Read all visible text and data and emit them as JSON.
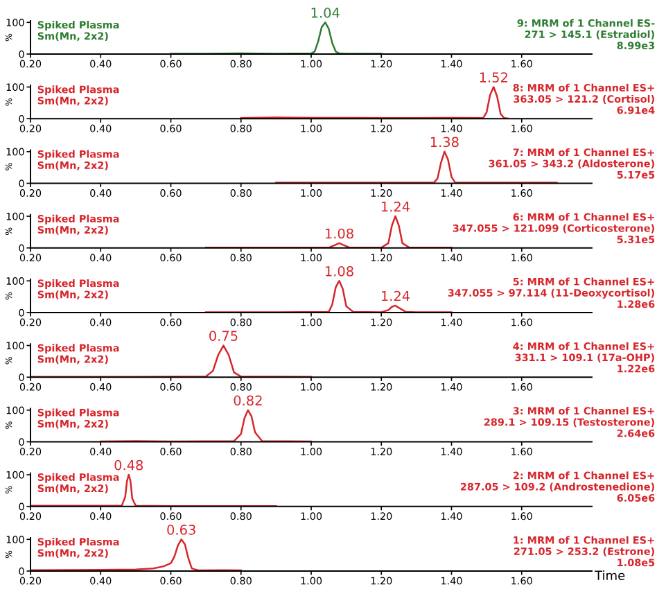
{
  "chart_data": [
    {
      "type": "line",
      "x": [
        0.6,
        0.7,
        0.8,
        0.9,
        1.0,
        1.01,
        1.02,
        1.03,
        1.04,
        1.05,
        1.06,
        1.07,
        1.08,
        1.1,
        1.2
      ],
      "series": [
        {
          "color": "#2e7d32",
          "values": [
            1,
            1,
            2,
            1,
            2,
            8,
            40,
            85,
            100,
            80,
            35,
            8,
            2,
            1,
            1
          ]
        }
      ],
      "xlim": [
        0.2,
        1.8
      ],
      "ylim": [
        0,
        105
      ],
      "xticks": [
        {
          "value": 0.2,
          "label": "0.20"
        },
        {
          "value": 0.4,
          "label": "0.40"
        },
        {
          "value": 0.6,
          "label": "0.60"
        },
        {
          "value": 0.8,
          "label": "0.80"
        },
        {
          "value": 1.0,
          "label": "1.00"
        },
        {
          "value": 1.2,
          "label": "1.20"
        },
        {
          "value": 1.4,
          "label": "1.40"
        },
        {
          "value": 1.6,
          "label": "1.60"
        }
      ],
      "yticks": [
        0,
        100
      ],
      "ylabel": "%",
      "annotations": [
        "Spiked Plasma\nSm(Mn, 2x2)",
        "9: MRM of 1 Channel ES-\n271 > 145.1 (Estradiol)\n8.99e3",
        {
          "text": "1.04",
          "x": 1.04,
          "y": 100
        }
      ]
    },
    {
      "type": "line",
      "x": [
        0.8,
        0.9,
        1.0,
        1.1,
        1.2,
        1.3,
        1.4,
        1.49,
        1.5,
        1.51,
        1.52,
        1.53,
        1.54,
        1.55,
        1.56
      ],
      "series": [
        {
          "color": "#d7262b",
          "values": [
            2,
            4,
            3,
            3,
            2,
            2,
            3,
            2,
            20,
            75,
            100,
            70,
            15,
            2,
            1
          ]
        }
      ],
      "xlim": [
        0.2,
        1.8
      ],
      "ylim": [
        0,
        105
      ],
      "xticks": [
        {
          "value": 0.2,
          "label": "0.20"
        },
        {
          "value": 0.4,
          "label": "0.40"
        },
        {
          "value": 0.6,
          "label": "0.60"
        },
        {
          "value": 0.8,
          "label": "0.80"
        },
        {
          "value": 1.0,
          "label": "1.00"
        },
        {
          "value": 1.2,
          "label": "1.20"
        },
        {
          "value": 1.4,
          "label": "1.40"
        },
        {
          "value": 1.6,
          "label": "1.60"
        }
      ],
      "yticks": [
        0,
        100
      ],
      "ylabel": "%",
      "annotations": [
        "Spiked Plasma\nSm(Mn, 2x2)",
        "8: MRM of 1 Channel ES+\n363.05 > 121.2 (Cortisol)\n6.91e4",
        {
          "text": "1.52",
          "x": 1.52,
          "y": 100
        }
      ]
    },
    {
      "type": "line",
      "x": [
        0.9,
        1.0,
        1.1,
        1.2,
        1.3,
        1.35,
        1.36,
        1.37,
        1.38,
        1.39,
        1.4,
        1.41,
        1.5,
        1.6,
        1.7
      ],
      "series": [
        {
          "color": "#d7262b",
          "values": [
            2,
            2,
            2,
            2,
            2,
            2,
            15,
            65,
            100,
            75,
            20,
            3,
            2,
            2,
            2
          ]
        }
      ],
      "xlim": [
        0.2,
        1.8
      ],
      "ylim": [
        0,
        105
      ],
      "xticks": [
        {
          "value": 0.2,
          "label": "0.20"
        },
        {
          "value": 0.4,
          "label": "0.40"
        },
        {
          "value": 0.6,
          "label": "0.60"
        },
        {
          "value": 0.8,
          "label": "0.80"
        },
        {
          "value": 1.0,
          "label": "1.00"
        },
        {
          "value": 1.2,
          "label": "1.20"
        },
        {
          "value": 1.4,
          "label": "1.40"
        },
        {
          "value": 1.6,
          "label": "1.60"
        }
      ],
      "yticks": [
        0,
        100
      ],
      "ylabel": "%",
      "annotations": [
        "Spiked Plasma\nSm(Mn, 2x2)",
        "7: MRM of 1 Channel ES+\n361.05 > 343.2 (Aldosterone)\n5.17e5",
        {
          "text": "1.38",
          "x": 1.38,
          "y": 100
        }
      ]
    },
    {
      "type": "line",
      "x": [
        0.7,
        0.9,
        1.05,
        1.07,
        1.08,
        1.09,
        1.11,
        1.2,
        1.22,
        1.23,
        1.24,
        1.25,
        1.26,
        1.28,
        1.4
      ],
      "series": [
        {
          "color": "#d7262b",
          "values": [
            1,
            1,
            1,
            10,
            15,
            10,
            1,
            1,
            15,
            70,
            100,
            70,
            15,
            1,
            1
          ]
        }
      ],
      "xlim": [
        0.2,
        1.8
      ],
      "ylim": [
        0,
        105
      ],
      "xticks": [
        {
          "value": 0.2,
          "label": "0.20"
        },
        {
          "value": 0.4,
          "label": "0.40"
        },
        {
          "value": 0.6,
          "label": "0.60"
        },
        {
          "value": 0.8,
          "label": "0.80"
        },
        {
          "value": 1.0,
          "label": "1.00"
        },
        {
          "value": 1.2,
          "label": "1.20"
        },
        {
          "value": 1.4,
          "label": "1.40"
        },
        {
          "value": 1.6,
          "label": "1.60"
        }
      ],
      "yticks": [
        0,
        100
      ],
      "ylabel": "%",
      "annotations": [
        "Spiked Plasma\nSm(Mn, 2x2)",
        "6: MRM of 1 Channel ES+\n347.055 > 121.099 (Corticosterone)\n5.31e5",
        {
          "text": "1.08",
          "x": 1.08,
          "y": 15
        },
        {
          "text": "1.24",
          "x": 1.24,
          "y": 100
        }
      ]
    },
    {
      "type": "line",
      "x": [
        0.7,
        0.9,
        1.05,
        1.06,
        1.07,
        1.08,
        1.09,
        1.1,
        1.12,
        1.2,
        1.22,
        1.23,
        1.24,
        1.25,
        1.27,
        1.3,
        1.4
      ],
      "series": [
        {
          "color": "#d7262b",
          "values": [
            1,
            1,
            2,
            25,
            80,
            100,
            75,
            20,
            2,
            1,
            8,
            18,
            22,
            15,
            2,
            1,
            1
          ]
        }
      ],
      "xlim": [
        0.2,
        1.8
      ],
      "ylim": [
        0,
        105
      ],
      "xticks": [
        {
          "value": 0.2,
          "label": "0.20"
        },
        {
          "value": 0.4,
          "label": "0.40"
        },
        {
          "value": 0.6,
          "label": "0.60"
        },
        {
          "value": 0.8,
          "label": "0.80"
        },
        {
          "value": 1.0,
          "label": "1.00"
        },
        {
          "value": 1.2,
          "label": "1.20"
        },
        {
          "value": 1.4,
          "label": "1.40"
        },
        {
          "value": 1.6,
          "label": "1.60"
        }
      ],
      "yticks": [
        0,
        100
      ],
      "ylabel": "%",
      "annotations": [
        "Spiked Plasma\nSm(Mn, 2x2)",
        "5: MRM of 1 Channel ES+\n347.055 > 97.114 (11-Deoxycortisol)\n1.28e6",
        {
          "text": "1.08",
          "x": 1.08,
          "y": 100
        },
        {
          "text": "1.24",
          "x": 1.24,
          "y": 22
        }
      ]
    },
    {
      "type": "line",
      "x": [
        0.2,
        0.5,
        0.7,
        0.72,
        0.735,
        0.75,
        0.765,
        0.78,
        0.8,
        1.0
      ],
      "series": [
        {
          "color": "#d7262b",
          "values": [
            1,
            1,
            2,
            20,
            70,
            100,
            70,
            15,
            2,
            1
          ]
        }
      ],
      "xlim": [
        0.2,
        1.8
      ],
      "ylim": [
        0,
        105
      ],
      "xticks": [
        {
          "value": 0.2,
          "label": "0.20"
        },
        {
          "value": 0.4,
          "label": "0.40"
        },
        {
          "value": 0.6,
          "label": "0.60"
        },
        {
          "value": 0.8,
          "label": "0.80"
        },
        {
          "value": 1.0,
          "label": "1.00"
        },
        {
          "value": 1.2,
          "label": "1.20"
        },
        {
          "value": 1.4,
          "label": "1.40"
        },
        {
          "value": 1.6,
          "label": "1.60"
        }
      ],
      "yticks": [
        0,
        100
      ],
      "ylabel": "%",
      "annotations": [
        "Spiked Plasma\nSm(Mn, 2x2)",
        "4: MRM of 1 Channel ES+\n331.1 > 109.1 (17a-OHP)\n1.22e6",
        {
          "text": "0.75",
          "x": 0.75,
          "y": 100
        }
      ]
    },
    {
      "type": "line",
      "x": [
        0.4,
        0.5,
        0.6,
        0.78,
        0.8,
        0.81,
        0.82,
        0.83,
        0.84,
        0.86,
        1.0
      ],
      "series": [
        {
          "color": "#d7262b",
          "values": [
            1,
            2,
            1,
            2,
            25,
            75,
            100,
            80,
            30,
            2,
            1
          ]
        }
      ],
      "xlim": [
        0.2,
        1.8
      ],
      "ylim": [
        0,
        105
      ],
      "xticks": [
        {
          "value": 0.2,
          "label": "0.20"
        },
        {
          "value": 0.4,
          "label": "0.40"
        },
        {
          "value": 0.6,
          "label": "0.60"
        },
        {
          "value": 0.8,
          "label": "0.80"
        },
        {
          "value": 1.0,
          "label": "1.00"
        },
        {
          "value": 1.2,
          "label": "1.20"
        },
        {
          "value": 1.4,
          "label": "1.40"
        },
        {
          "value": 1.6,
          "label": "1.60"
        }
      ],
      "yticks": [
        0,
        100
      ],
      "ylabel": "%",
      "annotations": [
        "Spiked Plasma\nSm(Mn, 2x2)",
        "3: MRM of 1 Channel ES+\n289.1 > 109.15 (Testosterone)\n2.64e6",
        {
          "text": "0.82",
          "x": 0.82,
          "y": 100
        }
      ]
    },
    {
      "type": "line",
      "x": [
        0.2,
        0.4,
        0.46,
        0.47,
        0.475,
        0.48,
        0.485,
        0.49,
        0.5,
        0.6,
        0.9
      ],
      "series": [
        {
          "color": "#d7262b",
          "values": [
            2,
            2,
            2,
            30,
            80,
            100,
            80,
            25,
            2,
            1,
            1
          ]
        }
      ],
      "xlim": [
        0.2,
        1.8
      ],
      "ylim": [
        0,
        105
      ],
      "xticks": [
        {
          "value": 0.2,
          "label": "0.20"
        },
        {
          "value": 0.4,
          "label": "0.40"
        },
        {
          "value": 0.6,
          "label": "0.60"
        },
        {
          "value": 0.8,
          "label": "0.80"
        },
        {
          "value": 1.0,
          "label": "1.00"
        },
        {
          "value": 1.2,
          "label": "1.20"
        },
        {
          "value": 1.4,
          "label": "1.40"
        },
        {
          "value": 1.6,
          "label": "1.60"
        }
      ],
      "yticks": [
        0,
        100
      ],
      "ylabel": "%",
      "annotations": [
        "Spiked Plasma\nSm(Mn, 2x2)",
        "2: MRM of 1 Channel ES+\n287.05 > 109.2 (Androstenedione)\n6.05e6",
        {
          "text": "0.48",
          "x": 0.48,
          "y": 100
        }
      ]
    },
    {
      "type": "line",
      "x": [
        0.2,
        0.4,
        0.5,
        0.55,
        0.58,
        0.6,
        0.61,
        0.62,
        0.63,
        0.64,
        0.65,
        0.66,
        0.68,
        0.75,
        0.8
      ],
      "series": [
        {
          "color": "#d7262b",
          "values": [
            3,
            4,
            5,
            8,
            15,
            25,
            45,
            80,
            100,
            85,
            40,
            8,
            2,
            3,
            2
          ]
        }
      ],
      "xlim": [
        0.2,
        1.8
      ],
      "ylim": [
        0,
        105
      ],
      "xticks": [
        {
          "value": 0.2,
          "label": "0.20"
        },
        {
          "value": 0.4,
          "label": "0.40"
        },
        {
          "value": 0.6,
          "label": "0.60"
        },
        {
          "value": 0.8,
          "label": "0.80"
        },
        {
          "value": 1.0,
          "label": "1.00"
        },
        {
          "value": 1.2,
          "label": "1.20"
        },
        {
          "value": 1.4,
          "label": "1.40"
        },
        {
          "value": 1.6,
          "label": "1.60"
        }
      ],
      "yticks": [
        0,
        100
      ],
      "ylabel": "%",
      "xlabel": "Time",
      "annotations": [
        "Spiked Plasma\nSm(Mn, 2x2)",
        "1: MRM of 1 Channel ES+\n271.05 > 253.2 (Estrone)\n1.08e5",
        {
          "text": "0.63",
          "x": 0.63,
          "y": 100
        }
      ]
    }
  ]
}
